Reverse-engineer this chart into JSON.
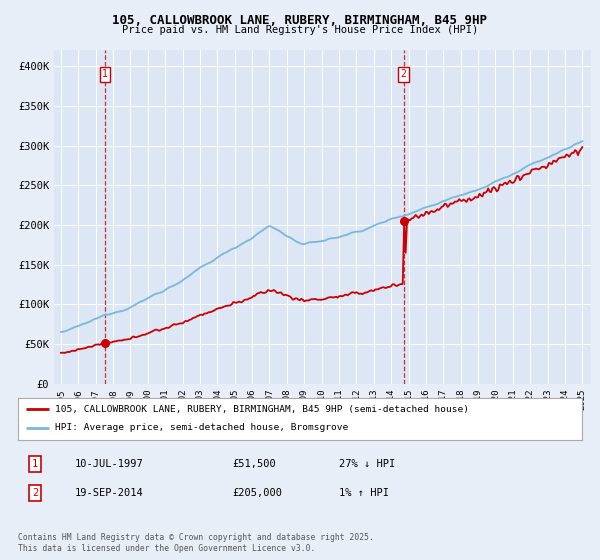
{
  "title1": "105, CALLOWBROOK LANE, RUBERY, BIRMINGHAM, B45 9HP",
  "title2": "Price paid vs. HM Land Registry's House Price Index (HPI)",
  "ylim": [
    0,
    420000
  ],
  "yticks": [
    0,
    50000,
    100000,
    150000,
    200000,
    250000,
    300000,
    350000,
    400000
  ],
  "ytick_labels": [
    "£0",
    "£50K",
    "£100K",
    "£150K",
    "£200K",
    "£250K",
    "£300K",
    "£350K",
    "£400K"
  ],
  "hpi_color": "#7ab8d9",
  "price_color": "#cc0000",
  "sale1_year": 1997.53,
  "sale1_price": 51500,
  "sale2_year": 2014.72,
  "sale2_price": 205000,
  "legend_line1": "105, CALLOWBROOK LANE, RUBERY, BIRMINGHAM, B45 9HP (semi-detached house)",
  "legend_line2": "HPI: Average price, semi-detached house, Bromsgrove",
  "annotation1_date": "10-JUL-1997",
  "annotation1_price": "£51,500",
  "annotation1_hpi": "27% ↓ HPI",
  "annotation2_date": "19-SEP-2014",
  "annotation2_price": "£205,000",
  "annotation2_hpi": "1% ↑ HPI",
  "footer": "Contains HM Land Registry data © Crown copyright and database right 2025.\nThis data is licensed under the Open Government Licence v3.0.",
  "bg_color": "#e8eef8",
  "plot_bg_color": "#dce6f4",
  "grid_color": "#ffffff"
}
